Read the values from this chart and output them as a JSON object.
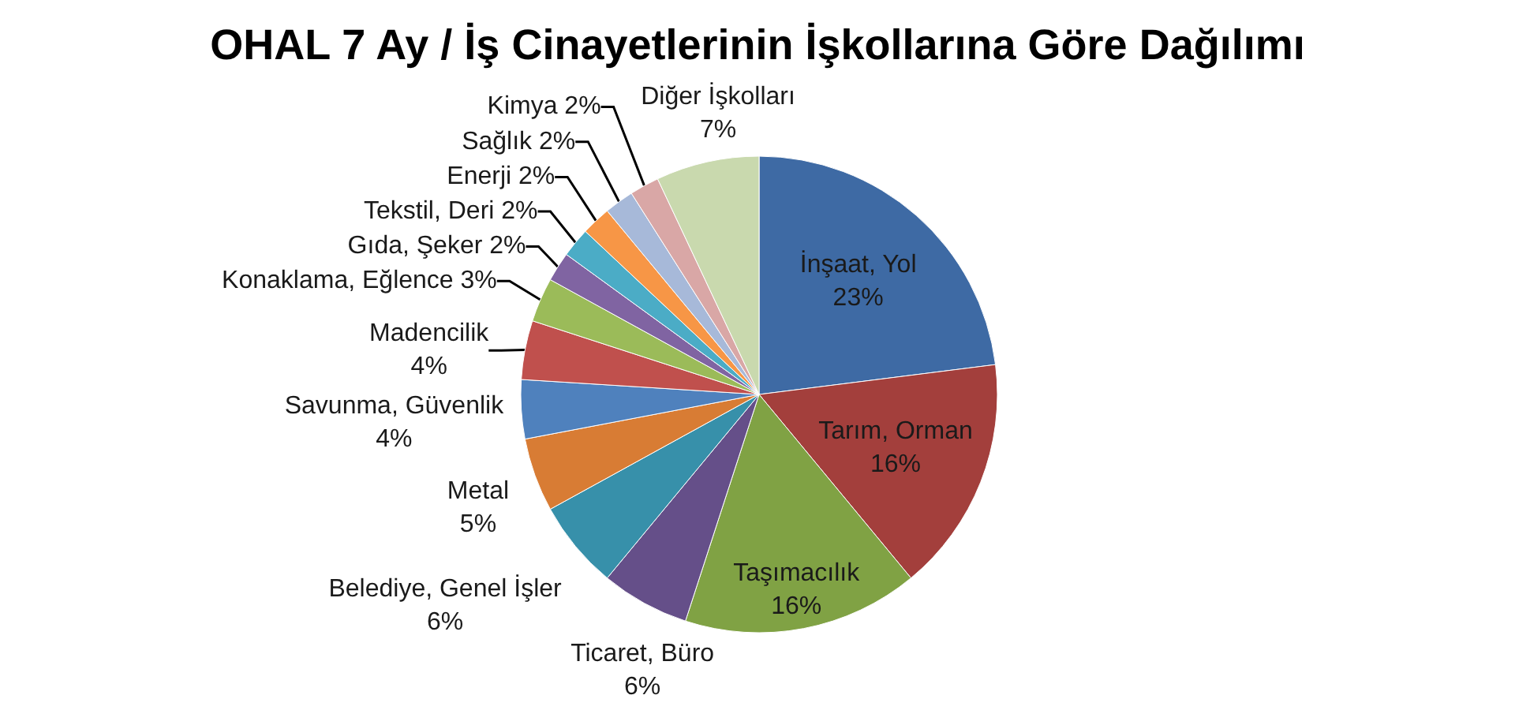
{
  "chart_data": {
    "type": "pie",
    "title": "OHAL 7 Ay / İş Cinayetlerinin İşkollarına Göre Dağılımı",
    "categories": [
      "İnşaat, Yol",
      "Tarım, Orman",
      "Taşımacılık",
      "Ticaret, Büro",
      "Belediye, Genel İşler",
      "Metal",
      "Savunma, Güvenlik",
      "Madencilik",
      "Konaklama, Eğlence",
      "Gıda, Şeker",
      "Tekstil, Deri",
      "Enerji",
      "Sağlık",
      "Kimya",
      "Diğer İşkolları"
    ],
    "values": [
      23,
      16,
      16,
      6,
      6,
      5,
      4,
      4,
      3,
      2,
      2,
      2,
      2,
      2,
      7
    ],
    "value_labels": [
      "23%",
      "16%",
      "16%",
      "6%",
      "6%",
      "5%",
      "4%",
      "4%",
      "3%",
      "2%",
      "2%",
      "2%",
      "2%",
      "2%",
      "7%"
    ],
    "colors": [
      "#3e6aa4",
      "#a33f3c",
      "#80a244",
      "#654f89",
      "#3790aa",
      "#d87c34",
      "#4f81bd",
      "#c0504d",
      "#9bbb59",
      "#8064a2",
      "#4bacc6",
      "#f79646",
      "#a7b9d9",
      "#d9a7a6",
      "#c9d9ae"
    ],
    "legend": false
  }
}
